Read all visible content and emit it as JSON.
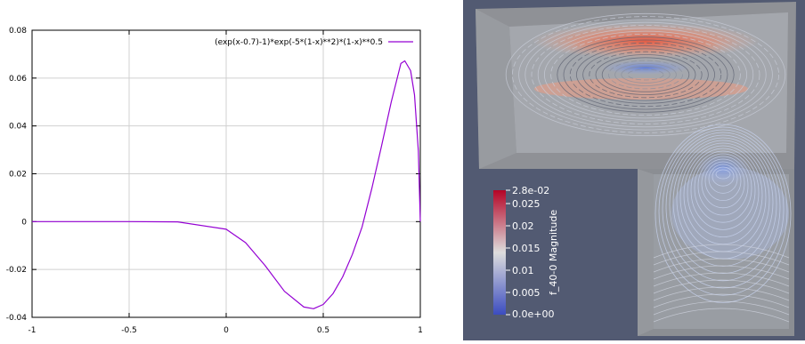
{
  "chart_data": [
    {
      "type": "line",
      "title": "",
      "xlabel": "",
      "ylabel": "",
      "xlim": [
        -1,
        1
      ],
      "ylim": [
        -0.04,
        0.08
      ],
      "grid": true,
      "legend": "top-right",
      "x_ticks": [
        "-1",
        "-0.5",
        "0",
        "0.5",
        "1"
      ],
      "y_ticks": [
        "-0.04",
        "-0.02",
        "0",
        "0.02",
        "0.04",
        "0.06",
        "0.08"
      ],
      "series": [
        {
          "name": "(exp(x-0.7)-1)*exp(-5*(1-x)**2)*(1-x)**0.5",
          "color": "#9400d3",
          "x": [
            -1.0,
            -0.5,
            -0.25,
            0.0,
            0.1,
            0.2,
            0.3,
            0.4,
            0.45,
            0.5,
            0.55,
            0.6,
            0.65,
            0.7,
            0.75,
            0.8,
            0.85,
            0.9,
            0.92,
            0.95,
            0.97,
            0.99,
            1.0
          ],
          "y": [
            0.0,
            0.0,
            -0.0001,
            -0.0032,
            -0.0088,
            -0.0183,
            -0.0291,
            -0.0357,
            -0.0364,
            -0.0346,
            -0.0301,
            -0.0231,
            -0.0137,
            -0.0022,
            0.0138,
            0.0315,
            0.0499,
            0.0661,
            0.0672,
            0.0631,
            0.0529,
            0.0295,
            0.0
          ]
        }
      ]
    },
    {
      "type": "heatmap",
      "colorbar": {
        "label": "f_40-0 Magnitude",
        "min_label": "0.0e+00",
        "max_label": "2.8e-02",
        "ticks": [
          "0.025",
          "0.02",
          "0.015",
          "0.01",
          "0.005"
        ],
        "min": 0.0,
        "max": 0.028,
        "low_color": "#3b4cc0",
        "mid_color": "#dddddd",
        "high_color": "#b40426"
      }
    }
  ]
}
